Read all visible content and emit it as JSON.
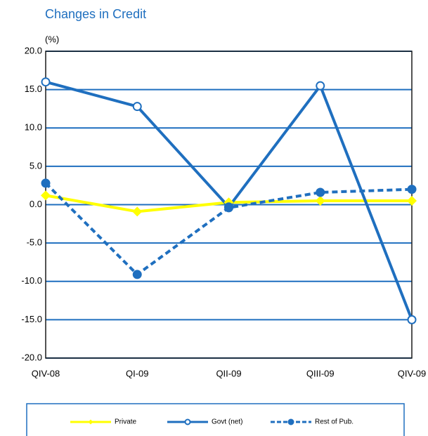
{
  "chart_data": {
    "type": "line",
    "title": "Changes in Credit",
    "y_label": "(%)",
    "categories": [
      "QIV-08",
      "QI-09",
      "QII-09",
      "QIII-09",
      "QIV-09"
    ],
    "series": [
      {
        "name": "Private",
        "color": "#ffff00",
        "marker": "diamond",
        "line_style": "solid",
        "values": [
          1.2,
          -0.9,
          0.3,
          0.5,
          0.5
        ]
      },
      {
        "name": "Govt (net)",
        "color": "#1f6fbf",
        "marker": "circle-open",
        "line_style": "solid",
        "values": [
          16.0,
          12.8,
          -0.3,
          15.5,
          -15.0
        ]
      },
      {
        "name": "Rest of Pub.",
        "color": "#1f6fbf",
        "marker": "circle",
        "line_style": "dashed",
        "values": [
          2.8,
          -9.1,
          -0.4,
          1.6,
          2.0
        ]
      }
    ],
    "ylim": [
      -20,
      20
    ],
    "yticks": [
      {
        "value": -20,
        "label": "-20.0"
      },
      {
        "value": -15,
        "label": "-15.0"
      },
      {
        "value": -10,
        "label": "-10.0"
      },
      {
        "value": -5,
        "label": "-5.0"
      },
      {
        "value": 0,
        "label": "0.0"
      },
      {
        "value": 5,
        "label": "5.0"
      },
      {
        "value": 10,
        "label": "10.0"
      },
      {
        "value": 15,
        "label": "15.0"
      },
      {
        "value": 20,
        "label": "20.0"
      }
    ],
    "grid": true,
    "legend_position": "bottom"
  }
}
